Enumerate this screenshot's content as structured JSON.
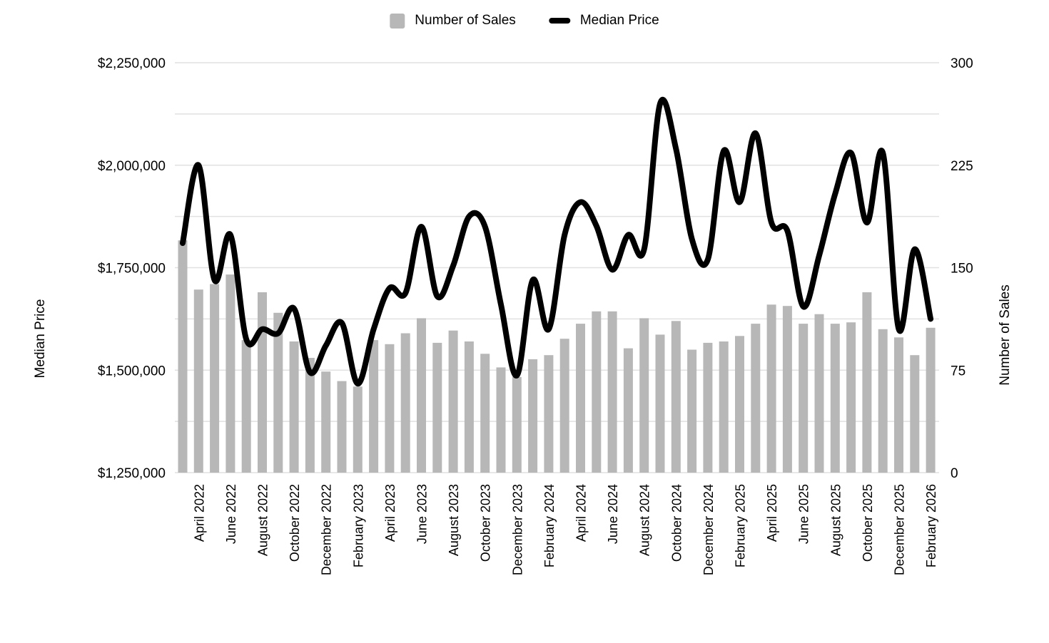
{
  "legend": {
    "sales_label": "Number of Sales",
    "price_label": "Median Price"
  },
  "left_axis": {
    "title": "Median Price",
    "tick_values": [
      2250000,
      2000000,
      1750000,
      1500000,
      1250000
    ],
    "tick_labels": [
      "$2,250,000",
      "$2,000,000",
      "$1,750,000",
      "$1,500,000",
      "$1,250,000"
    ]
  },
  "right_axis": {
    "title": "Number of Sales",
    "tick_values": [
      300,
      225,
      150,
      75,
      0
    ],
    "tick_labels": [
      "300",
      "225",
      "150",
      "75",
      "0"
    ]
  },
  "colors": {
    "bar": "#b7b7b7",
    "line": "#000000",
    "grid": "#e1e1e1",
    "text": "#000000"
  },
  "chart_data": {
    "type": "combo",
    "x": [
      "March 2022",
      "April 2022",
      "May 2022",
      "June 2022",
      "July 2022",
      "August 2022",
      "September 2022",
      "October 2022",
      "November 2022",
      "December 2022",
      "January 2023",
      "February 2023",
      "March 2023",
      "April 2023",
      "May 2023",
      "June 2023",
      "July 2023",
      "August 2023",
      "September 2023",
      "October 2023",
      "November 2023",
      "December 2023",
      "January 2024",
      "February 2024",
      "March 2024",
      "April 2024",
      "May 2024",
      "June 2024",
      "July 2024",
      "August 2024",
      "September 2024",
      "October 2024",
      "November 2024",
      "December 2024",
      "January 2025",
      "February 2025",
      "March 2025",
      "April 2025",
      "May 2025",
      "June 2025",
      "July 2025",
      "August 2025",
      "September 2025",
      "October 2025",
      "November 2025",
      "December 2025",
      "January 2026",
      "February 2026"
    ],
    "x_tick_labels": [
      "April 2022",
      "June 2022",
      "August 2022",
      "October 2022",
      "December 2022",
      "February 2023",
      "April 2023",
      "June 2023",
      "August 2023",
      "October 2023",
      "December 2023",
      "February 2024",
      "April 2024",
      "June 2024",
      "August 2024",
      "October 2024",
      "December 2024",
      "February 2025",
      "April 2025",
      "June 2025",
      "August 2025",
      "October 2025",
      "December 2025",
      "February 2026"
    ],
    "series": [
      {
        "name": "Number of Sales",
        "type": "bar",
        "axis": "right",
        "values": [
          170,
          134,
          138,
          145,
          97,
          132,
          117,
          96,
          84,
          74,
          67,
          63,
          97,
          94,
          102,
          113,
          95,
          104,
          96,
          87,
          77,
          70,
          83,
          86,
          98,
          109,
          118,
          118,
          91,
          113,
          101,
          111,
          90,
          95,
          96,
          100,
          109,
          123,
          122,
          109,
          116,
          109,
          110,
          132,
          105,
          99,
          86,
          106
        ]
      },
      {
        "name": "Median Price",
        "type": "line",
        "axis": "left",
        "values": [
          1810000,
          2000000,
          1720000,
          1830000,
          1575000,
          1600000,
          1590000,
          1650000,
          1495000,
          1560000,
          1615000,
          1467000,
          1600000,
          1700000,
          1688000,
          1850000,
          1680000,
          1755000,
          1875000,
          1850000,
          1660000,
          1487000,
          1720000,
          1600000,
          1830000,
          1910000,
          1852000,
          1745000,
          1830000,
          1795000,
          2150000,
          2040000,
          1820000,
          1770000,
          2035000,
          1910000,
          2078000,
          1860000,
          1840000,
          1655000,
          1780000,
          1930000,
          2030000,
          1860000,
          2030000,
          1600000,
          1795000,
          1625000
        ]
      }
    ],
    "left_ylim": [
      1250000,
      2250000
    ],
    "right_ylim": [
      0,
      300
    ],
    "left_minor_step": 125000,
    "grid": "horizontal",
    "legend_position": "top"
  }
}
